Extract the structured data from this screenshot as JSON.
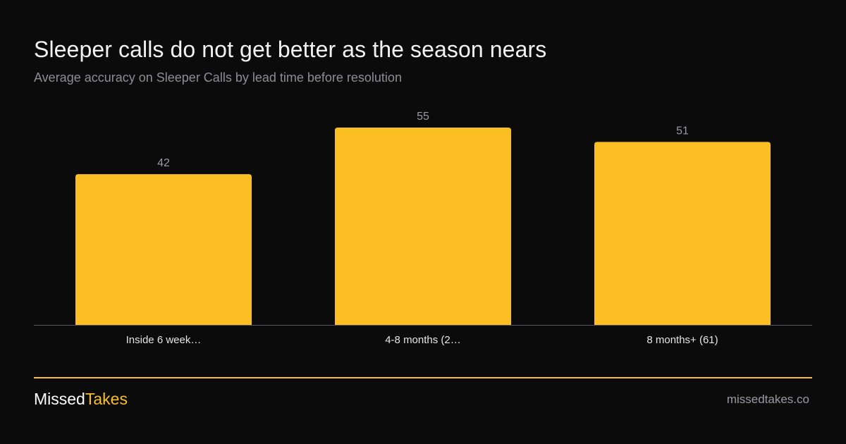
{
  "header": {
    "title": "Sleeper calls do not get better as the season nears",
    "subtitle": "Average accuracy on Sleeper Calls by lead time before resolution"
  },
  "chart_data": {
    "type": "bar",
    "categories": [
      "Inside 6 week…",
      "4-8 months (2…",
      "8 months+ (61)"
    ],
    "values": [
      42,
      55,
      51
    ],
    "data_labels": [
      "42",
      "55",
      "51"
    ],
    "title": "Sleeper calls do not get better as the season nears",
    "subtitle": "Average accuracy on Sleeper Calls by lead time before resolution",
    "xlabel": "",
    "ylabel": "",
    "ylim": [
      0,
      55
    ],
    "grid": false,
    "legend": "none",
    "bar_color": "#fbbf24"
  },
  "footer": {
    "brand_part1": "Missed",
    "brand_part2": "Takes",
    "site": "missedtakes.co"
  },
  "colors": {
    "background": "#0b0b0b",
    "accent": "#fbbf24",
    "muted_text": "#8d8d95",
    "axis": "#555560"
  }
}
